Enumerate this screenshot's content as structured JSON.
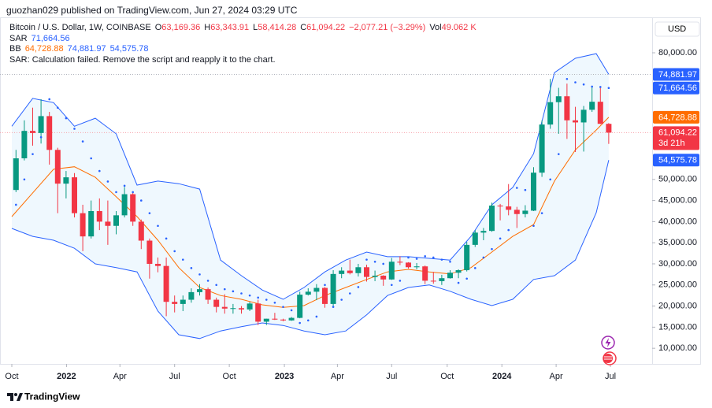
{
  "publisher": "guozhan029 published on TradingView.com, Jun 27, 2024 03:29 UTC",
  "brand": "TradingView",
  "chart_data": {
    "type": "candlestick",
    "title": "Bitcoin / U.S. Dollar, 1W, COINBASE",
    "currency": "USD",
    "legend": {
      "ohlc": [
        {
          "key": "O",
          "value": "63,169.36"
        },
        {
          "key": "H",
          "value": "63,343.91"
        },
        {
          "key": "L",
          "value": "58,414.28"
        },
        {
          "key": "C",
          "value": "61,094.22"
        }
      ],
      "change": "−2,077.21 (−3.29%)",
      "volume": {
        "key": "Vol",
        "value": "49.062 K"
      },
      "sar": {
        "key": "SAR",
        "value": "71,664.56"
      },
      "bb": {
        "key": "BB",
        "values": [
          "64,728.88",
          "74,881.97",
          "54,575.78"
        ]
      },
      "message": "SAR: Calculation failed. Remove the script and reapply it to the chart."
    },
    "up_color": "#089981",
    "down_color": "#f23645",
    "x": [
      1,
      3,
      5,
      7,
      9,
      11,
      13,
      15,
      17,
      19,
      21,
      23,
      25,
      27,
      29,
      31,
      33,
      35,
      37,
      39,
      41,
      43,
      45,
      47,
      49,
      51,
      53,
      55,
      57,
      59,
      61,
      63,
      65,
      67,
      69,
      71,
      73,
      75,
      77,
      79,
      81,
      83,
      85,
      87,
      89,
      91,
      93,
      95,
      97,
      99,
      101,
      103,
      105,
      107,
      109,
      111,
      113,
      115,
      117,
      119,
      121,
      123,
      125,
      127,
      129,
      131,
      133,
      135,
      137,
      139,
      141,
      143
    ],
    "open": [
      47500,
      55000,
      61500,
      61000,
      65000,
      57000,
      49000,
      50500,
      42000,
      36500,
      42500,
      40000,
      39000,
      41500,
      46500,
      40000,
      35500,
      30000,
      29500,
      21000,
      20500,
      21500,
      23300,
      24000,
      21500,
      19800,
      19400,
      19500,
      19200,
      20600,
      16300,
      17000,
      16800,
      16600,
      17200,
      22700,
      23400,
      24300,
      20500,
      27600,
      28400,
      27800,
      29200,
      26900,
      27200,
      26300,
      30500,
      30300,
      29200,
      29400,
      26000,
      25900,
      26600,
      27900,
      28500,
      34500,
      37400,
      37800,
      43800,
      43600,
      42800,
      41800,
      42600,
      51600,
      63000,
      68300,
      69700,
      64000,
      63500,
      66500,
      68400,
      63169.36
    ],
    "high": [
      57000,
      64000,
      67000,
      69000,
      66000,
      57500,
      52000,
      51500,
      44000,
      45000,
      45500,
      45000,
      42500,
      48200,
      47000,
      40500,
      36000,
      31500,
      31500,
      22500,
      22500,
      24200,
      25200,
      24400,
      22000,
      22800,
      20500,
      20000,
      21000,
      21500,
      17000,
      18400,
      17000,
      17400,
      23400,
      24200,
      25200,
      24500,
      28500,
      29200,
      31000,
      30000,
      29800,
      28400,
      27300,
      31400,
      31800,
      30400,
      30200,
      29600,
      28100,
      27400,
      28500,
      28700,
      35200,
      38000,
      38500,
      44500,
      44200,
      48900,
      43500,
      43900,
      52900,
      64000,
      73800,
      71700,
      72700,
      67200,
      67400,
      71900,
      71900,
      63343.91
    ],
    "low": [
      47000,
      54500,
      58000,
      58500,
      53500,
      42000,
      45500,
      41000,
      33000,
      36000,
      38000,
      34500,
      37000,
      41000,
      39000,
      33500,
      26500,
      28000,
      17600,
      18500,
      18800,
      20800,
      22500,
      20500,
      18500,
      18200,
      18200,
      18200,
      18800,
      15500,
      15500,
      16700,
      16400,
      16500,
      17100,
      22500,
      21400,
      19600,
      20000,
      26600,
      27500,
      27000,
      25800,
      25900,
      24800,
      26200,
      29700,
      28900,
      28700,
      25200,
      25300,
      25000,
      26500,
      26600,
      28200,
      34000,
      35600,
      37600,
      40300,
      41500,
      38500,
      41000,
      42500,
      50600,
      62000,
      60800,
      59600,
      56500,
      56600,
      66000,
      63100,
      58414.28
    ],
    "close": [
      55000,
      61500,
      61000,
      65000,
      57000,
      49000,
      50500,
      42000,
      36500,
      42500,
      40000,
      39000,
      41500,
      46500,
      40000,
      35500,
      30000,
      29500,
      21000,
      20500,
      21500,
      23300,
      24000,
      21500,
      19800,
      19400,
      19500,
      19200,
      20600,
      16300,
      17000,
      16800,
      16600,
      17200,
      22700,
      23400,
      24300,
      20500,
      27600,
      28400,
      27800,
      29200,
      26900,
      27200,
      26300,
      30500,
      30300,
      29200,
      29400,
      26000,
      25900,
      26600,
      27900,
      28500,
      34500,
      37400,
      37800,
      43800,
      43600,
      42800,
      41800,
      42600,
      51600,
      63000,
      68300,
      69700,
      64000,
      63500,
      66500,
      68400,
      63169.36,
      61094.22
    ],
    "sar": {
      "color": "#2962ff",
      "x": [
        1,
        3,
        5,
        7,
        9,
        11,
        13,
        15,
        17,
        19,
        21,
        23,
        25,
        27,
        29,
        31,
        33,
        35,
        37,
        39,
        41,
        43,
        45,
        47,
        49,
        51,
        53,
        55,
        57,
        59,
        61,
        63,
        65,
        67,
        69,
        71,
        73,
        75,
        77,
        79,
        81,
        83,
        85,
        87,
        89,
        91,
        93,
        95,
        97,
        99,
        101,
        103,
        105,
        107,
        109,
        111,
        113,
        115,
        117,
        119,
        121,
        123,
        125,
        127,
        129,
        131,
        133,
        135,
        137,
        139,
        141,
        143
      ],
      "values": [
        44000,
        50000,
        56000,
        60000,
        69000,
        67000,
        64500,
        62000,
        59000,
        55000,
        52000,
        49500,
        47000,
        48500,
        47000,
        45000,
        42000,
        39000,
        36000,
        33000,
        31000,
        29000,
        27500,
        26000,
        25000,
        24000,
        23500,
        23000,
        22500,
        22000,
        21500,
        20800,
        19800,
        19000,
        16000,
        16600,
        17500,
        25000,
        19800,
        21500,
        23000,
        24500,
        31000,
        30500,
        30000,
        25000,
        26000,
        31500,
        31200,
        31800,
        31500,
        31000,
        30500,
        25500,
        26500,
        29000,
        31500,
        33500,
        36000,
        38000,
        48000,
        47500,
        39000,
        42000,
        50000,
        56000,
        73800,
        73000,
        72500,
        72000,
        71900,
        71664.56
      ]
    },
    "bb": {
      "band_color": "#2962ff",
      "basis_color": "#ff6d00",
      "fill": "rgba(33,150,243,0.07)",
      "x": [
        0,
        5,
        10,
        15,
        20,
        25,
        30,
        35,
        40,
        45,
        50,
        55,
        60,
        65,
        70,
        75,
        80,
        85,
        90,
        95,
        100,
        105,
        110,
        115,
        120,
        125,
        130,
        135,
        140,
        143
      ],
      "upper": [
        62600,
        69200,
        68200,
        62600,
        64500,
        60800,
        48650,
        49600,
        49000,
        47700,
        30900,
        27200,
        23800,
        21600,
        24400,
        28100,
        30900,
        32800,
        31700,
        31700,
        31300,
        30900,
        36500,
        44000,
        48100,
        56100,
        75300,
        78700,
        79800,
        74881.97
      ],
      "basis": [
        41200,
        46800,
        52400,
        53000,
        50500,
        45900,
        41200,
        35600,
        29100,
        24400,
        22500,
        21600,
        20300,
        19700,
        20100,
        22500,
        24400,
        26300,
        28100,
        28700,
        28100,
        27600,
        29100,
        32800,
        36500,
        39300,
        49600,
        57000,
        61700,
        64728.88
      ],
      "lower": [
        38400,
        36500,
        35600,
        33700,
        30000,
        29100,
        28100,
        18800,
        13200,
        12300,
        14100,
        15100,
        16000,
        15400,
        14100,
        13200,
        14100,
        17900,
        22500,
        24400,
        25000,
        23500,
        21600,
        20100,
        21600,
        26300,
        27200,
        30900,
        42100,
        54575.78
      ]
    },
    "xlim": [
      -2.83,
      153.4
    ],
    "xticks": [
      {
        "value": 0,
        "label": "Oct"
      },
      {
        "value": 13.1,
        "label": "2022"
      },
      {
        "value": 25.9,
        "label": "Apr"
      },
      {
        "value": 39,
        "label": "Jul"
      },
      {
        "value": 52.1,
        "label": "Oct"
      },
      {
        "value": 65.3,
        "label": "2023"
      },
      {
        "value": 78,
        "label": "Apr"
      },
      {
        "value": 91,
        "label": "Jul"
      },
      {
        "value": 104.3,
        "label": "Oct"
      },
      {
        "value": 117.4,
        "label": "2024"
      },
      {
        "value": 130.4,
        "label": "Apr"
      },
      {
        "value": 143.4,
        "label": "Jul"
      }
    ],
    "ylim": [
      6300,
      88400
    ],
    "yticks": [
      {
        "value": 10000,
        "label": "10,000.00"
      },
      {
        "value": 15000,
        "label": "15,000.00"
      },
      {
        "value": 20000,
        "label": "20,000.00"
      },
      {
        "value": 25000,
        "label": "25,000.00"
      },
      {
        "value": 30000,
        "label": "30,000.00"
      },
      {
        "value": 35000,
        "label": "35,000.00"
      },
      {
        "value": 40000,
        "label": "40,000.00"
      },
      {
        "value": 45000,
        "label": "45,000.00"
      },
      {
        "value": 50000,
        "label": "50,000.00"
      },
      {
        "value": 80000,
        "label": "80,000.00"
      }
    ],
    "price_labels": [
      {
        "value": 74881.97,
        "label": "74,881.97",
        "color": "#2962ff",
        "dotted_line": "#b2b5be"
      },
      {
        "value": 71664.56,
        "label": "71,664.56",
        "color": "#2962ff"
      },
      {
        "value": 64728.88,
        "label": "64,728.88",
        "color": "#ff6d00"
      },
      {
        "value": 61094.22,
        "label": "61,094.22",
        "color": "#f23645",
        "countdown": "3d 21h",
        "dotted_line": "#f7a1a9"
      },
      {
        "value": 54575.78,
        "label": "54,575.78",
        "color": "#2962ff"
      }
    ]
  }
}
